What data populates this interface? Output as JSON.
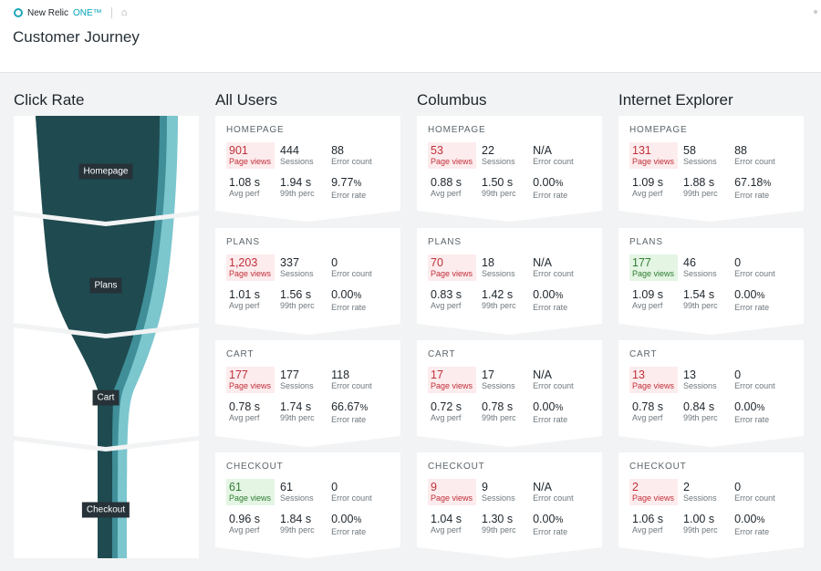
{
  "brand": {
    "name": "New Relic",
    "suffix": "ONE™"
  },
  "page": {
    "title": "Customer Journey"
  },
  "columns": [
    "Click Rate",
    "All Users",
    "Columbus",
    "Internet Explorer"
  ],
  "funnel": {
    "stages": [
      "Homepage",
      "Plans",
      "Cart",
      "Checkout"
    ]
  },
  "labels": {
    "page_views": "Page views",
    "sessions": "Sessions",
    "error_count": "Error count",
    "avg_perf": "Avg perf",
    "perc99": "99th perc",
    "error_rate": "Error rate"
  },
  "cards": [
    [
      {
        "stage": "HOMEPAGE",
        "page_views": "901",
        "sessions": "444",
        "error_count": "88",
        "avg_perf": "1.08 s",
        "perc99": "1.94 s",
        "error_rate": "9.77",
        "error_rate_unit": "%",
        "pv_state": "bad"
      },
      {
        "stage": "PLANS",
        "page_views": "1,203",
        "sessions": "337",
        "error_count": "0",
        "avg_perf": "1.01 s",
        "perc99": "1.56 s",
        "error_rate": "0.00",
        "error_rate_unit": "%",
        "pv_state": "bad"
      },
      {
        "stage": "CART",
        "page_views": "177",
        "sessions": "177",
        "error_count": "118",
        "avg_perf": "0.78 s",
        "perc99": "1.74 s",
        "error_rate": "66.67",
        "error_rate_unit": "%",
        "pv_state": "bad"
      },
      {
        "stage": "CHECKOUT",
        "page_views": "61",
        "sessions": "61",
        "error_count": "0",
        "avg_perf": "0.96 s",
        "perc99": "1.84 s",
        "error_rate": "0.00",
        "error_rate_unit": "%",
        "pv_state": "good"
      }
    ],
    [
      {
        "stage": "HOMEPAGE",
        "page_views": "53",
        "sessions": "22",
        "error_count": "N/A",
        "avg_perf": "0.88 s",
        "perc99": "1.50 s",
        "error_rate": "0.00",
        "error_rate_unit": "%",
        "pv_state": "bad"
      },
      {
        "stage": "PLANS",
        "page_views": "70",
        "sessions": "18",
        "error_count": "N/A",
        "avg_perf": "0.83 s",
        "perc99": "1.42 s",
        "error_rate": "0.00",
        "error_rate_unit": "%",
        "pv_state": "bad"
      },
      {
        "stage": "CART",
        "page_views": "17",
        "sessions": "17",
        "error_count": "N/A",
        "avg_perf": "0.72 s",
        "perc99": "0.78 s",
        "error_rate": "0.00",
        "error_rate_unit": "%",
        "pv_state": "bad"
      },
      {
        "stage": "CHECKOUT",
        "page_views": "9",
        "sessions": "9",
        "error_count": "N/A",
        "avg_perf": "1.04 s",
        "perc99": "1.30 s",
        "error_rate": "0.00",
        "error_rate_unit": "%",
        "pv_state": "bad"
      }
    ],
    [
      {
        "stage": "HOMEPAGE",
        "page_views": "131",
        "sessions": "58",
        "error_count": "88",
        "avg_perf": "1.09 s",
        "perc99": "1.88 s",
        "error_rate": "67.18",
        "error_rate_unit": "%",
        "pv_state": "bad"
      },
      {
        "stage": "PLANS",
        "page_views": "177",
        "sessions": "46",
        "error_count": "0",
        "avg_perf": "1.09 s",
        "perc99": "1.54 s",
        "error_rate": "0.00",
        "error_rate_unit": "%",
        "pv_state": "good"
      },
      {
        "stage": "CART",
        "page_views": "13",
        "sessions": "13",
        "error_count": "0",
        "avg_perf": "0.78 s",
        "perc99": "0.84 s",
        "error_rate": "0.00",
        "error_rate_unit": "%",
        "pv_state": "bad"
      },
      {
        "stage": "CHECKOUT",
        "page_views": "2",
        "sessions": "2",
        "error_count": "0",
        "avg_perf": "1.06 s",
        "perc99": "1.00 s",
        "error_rate": "0.00",
        "error_rate_unit": "%",
        "pv_state": "bad"
      }
    ]
  ],
  "colors": {
    "funnel_dark": "#1e4a50",
    "funnel_mid": "#3f8e98",
    "funnel_light": "#7cc6ce",
    "bad_bg": "#fdeced",
    "good_bg": "#e4f5e4",
    "accent": "#00a2b8"
  }
}
